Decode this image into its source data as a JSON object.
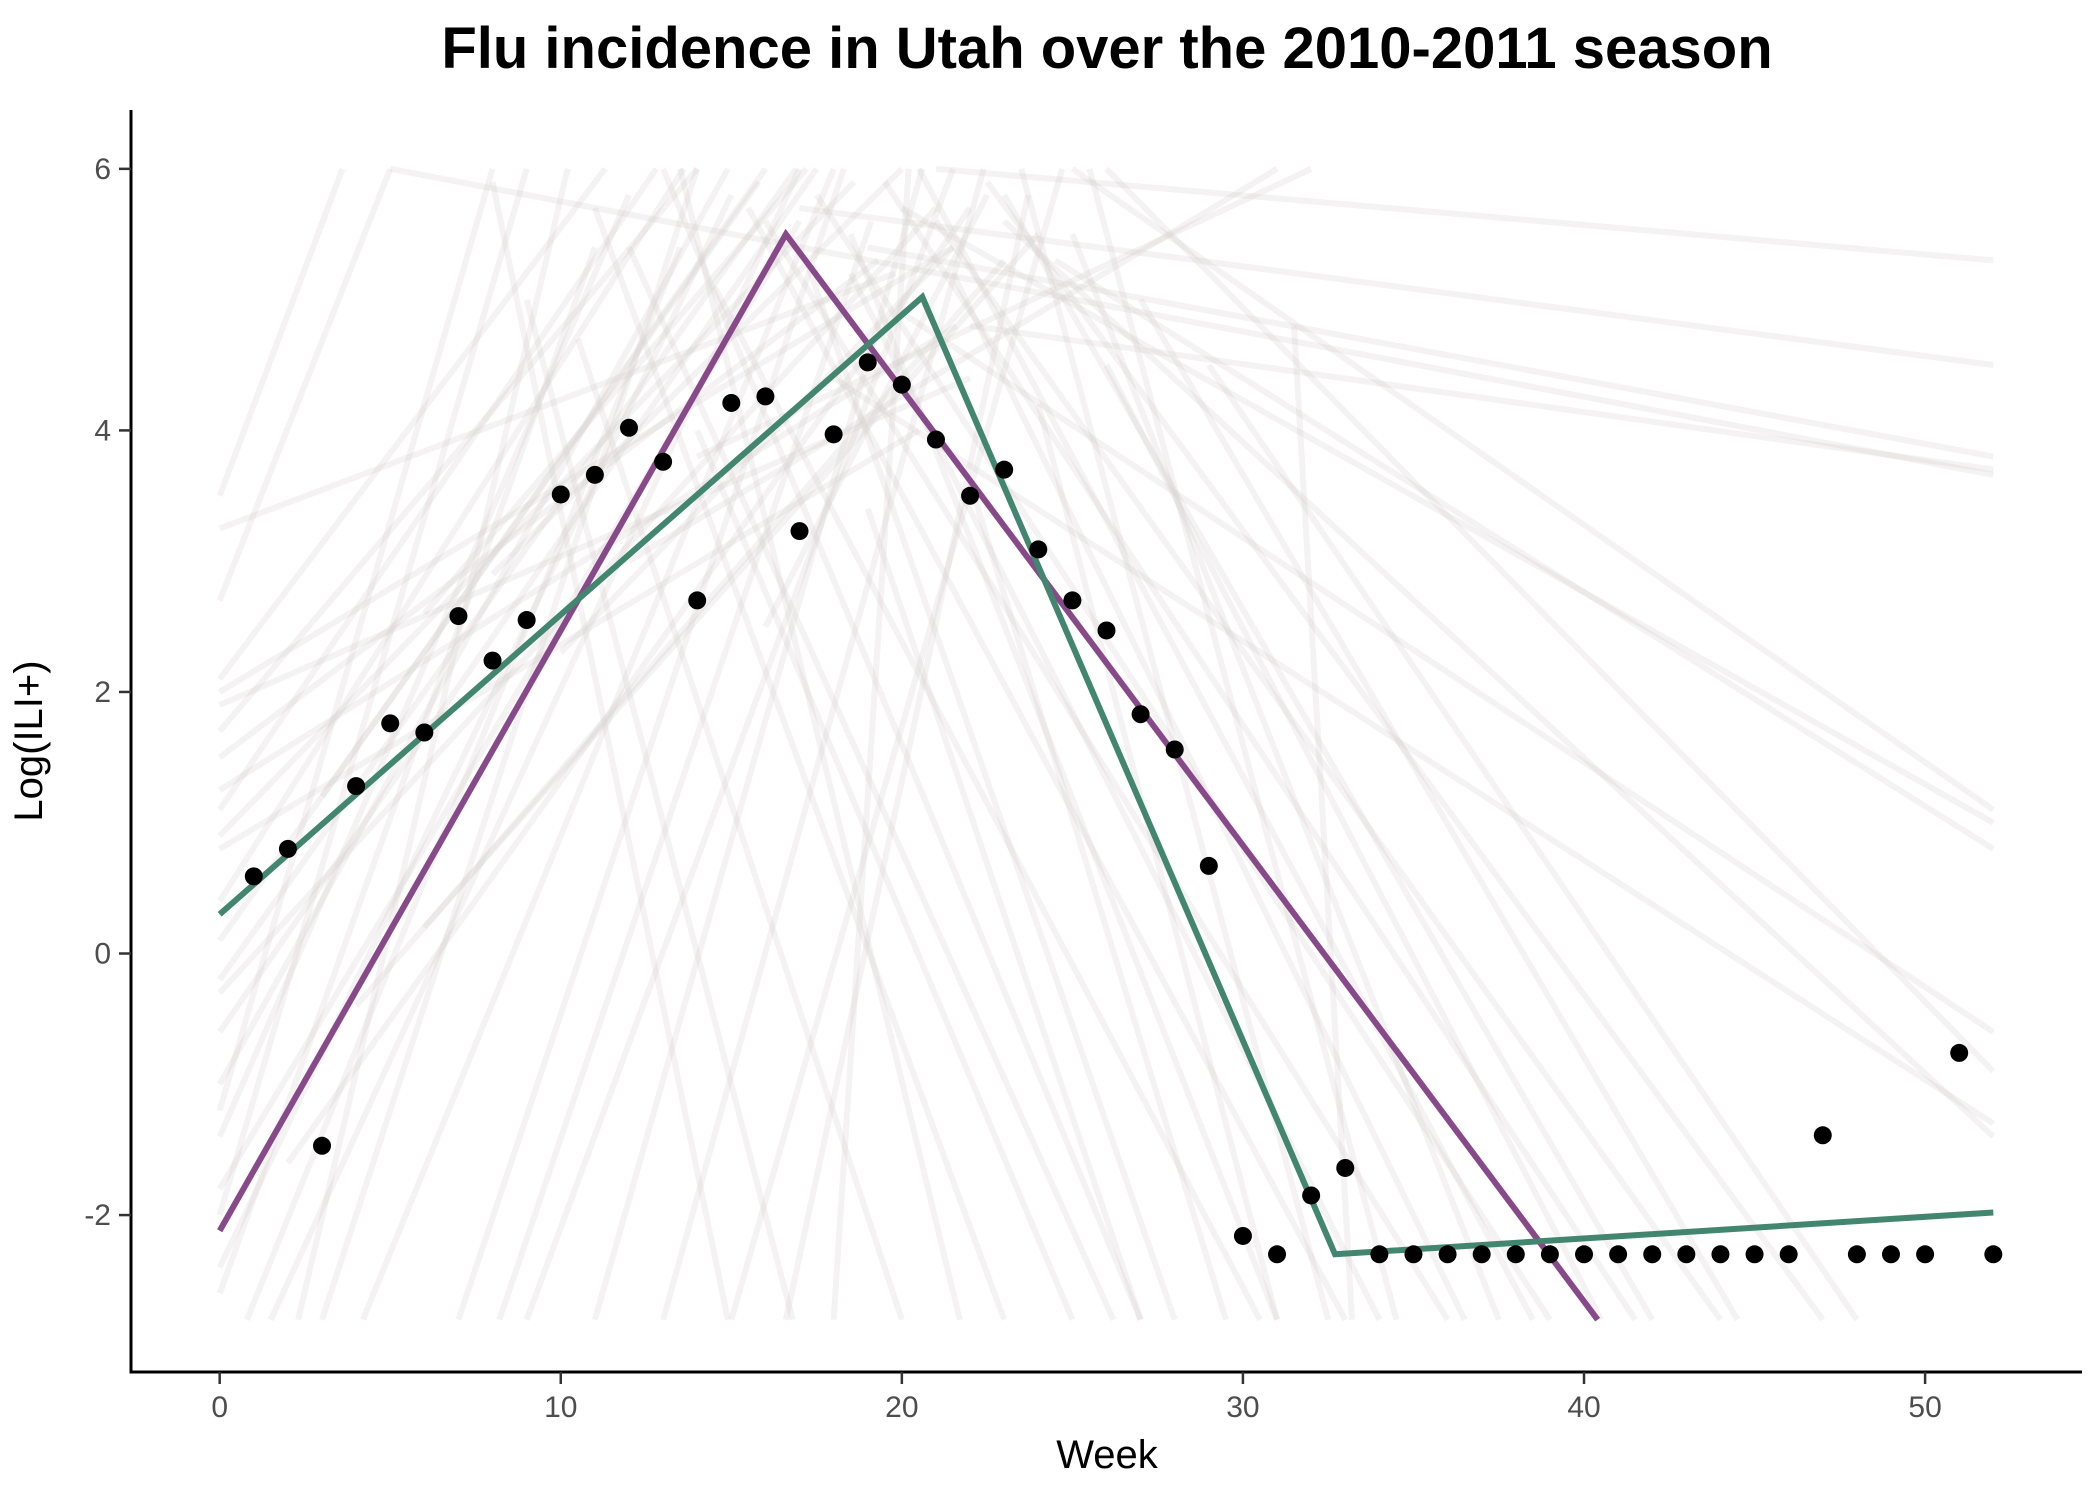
{
  "chart_data": {
    "type": "line",
    "title": "Flu incidence in Utah over the 2010-2011 season",
    "xlabel": "Week",
    "ylabel": "Log(ILI+)",
    "xlim": [
      -2.6,
      54.6
    ],
    "ylim": [
      -3.2,
      6.45
    ],
    "x_ticks": [
      0,
      10,
      20,
      30,
      40,
      50
    ],
    "y_ticks": [
      -2,
      0,
      2,
      4,
      6
    ],
    "grid": false,
    "legend": "none",
    "colors": {
      "observed": "#000000",
      "fit_purple": "#874989",
      "fit_green": "#428670",
      "background_lines": "#d9cfcf"
    },
    "observed": {
      "x": [
        1,
        2,
        3,
        4,
        5,
        6,
        7,
        8,
        9,
        10,
        11,
        12,
        13,
        14,
        15,
        16,
        17,
        18,
        19,
        20,
        21,
        22,
        23,
        24,
        25,
        26,
        27,
        28,
        29,
        30,
        31,
        32,
        33,
        34,
        35,
        36,
        37,
        38,
        39,
        40,
        41,
        42,
        43,
        44,
        45,
        46,
        47,
        48,
        49,
        50,
        51,
        52
      ],
      "y": [
        0.59,
        0.8,
        -1.47,
        1.28,
        1.76,
        1.69,
        2.58,
        2.24,
        2.55,
        3.51,
        3.66,
        4.02,
        3.76,
        2.7,
        4.21,
        4.26,
        3.23,
        3.97,
        4.52,
        4.35,
        3.93,
        3.5,
        3.7,
        3.09,
        2.7,
        2.47,
        1.83,
        1.56,
        0.67,
        -2.16,
        -2.3,
        -1.85,
        -1.64,
        -2.3,
        -2.3,
        -2.3,
        -2.3,
        -2.3,
        -2.3,
        -2.3,
        -2.3,
        -2.3,
        -2.3,
        -2.3,
        -2.3,
        -2.3,
        -1.39,
        -2.3,
        -2.3,
        -2.3,
        -0.76,
        -2.3
      ]
    },
    "series": [
      {
        "x": [
          0,
          16.6,
          40.4
        ],
        "y": [
          -2.12,
          5.5,
          -2.8
        ]
      },
      {
        "x": [
          0,
          20.6,
          32.7,
          52
        ],
        "y": [
          0.3,
          5.02,
          -2.3,
          -1.98
        ]
      }
    ],
    "background_lines": [
      [
        0,
        -0.2,
        16.9,
        6.0
      ],
      [
        0,
        0.4,
        13.6,
        6.0
      ],
      [
        0,
        1.1,
        12.8,
        6.0
      ],
      [
        0,
        2.1,
        11.3,
        6.0
      ],
      [
        0,
        3.5,
        3.6,
        6.0
      ],
      [
        0,
        2.7,
        5.0,
        6.0
      ],
      [
        0,
        -1.0,
        14.9,
        6.0
      ],
      [
        0,
        0.1,
        15.8,
        5.9
      ],
      [
        0,
        -0.6,
        17.5,
        6.0
      ],
      [
        0,
        1.7,
        14.0,
        6.0
      ],
      [
        0,
        -1.8,
        17.0,
        5.6
      ],
      [
        0,
        -2.4,
        15.0,
        5.8
      ],
      [
        0,
        0.9,
        18.6,
        5.9
      ],
      [
        0,
        3.25,
        19.8,
        5.2
      ],
      [
        0,
        1.5,
        19.3,
        5.3
      ],
      [
        0,
        -1.4,
        12.0,
        5.8
      ],
      [
        0,
        2.0,
        21.5,
        5.4
      ],
      [
        0,
        -0.3,
        21.0,
        5.7
      ],
      [
        0,
        1.25,
        21.6,
        4.8
      ],
      [
        1.5,
        -2.8,
        17.0,
        6.0
      ],
      [
        2.3,
        -2.8,
        10.2,
        6.0
      ],
      [
        3.0,
        -2.8,
        14.0,
        6.0
      ],
      [
        0.8,
        -2.8,
        13.5,
        5.4
      ],
      [
        4.2,
        -2.8,
        18.0,
        6.0
      ],
      [
        7.0,
        -2.8,
        18.3,
        6.0
      ],
      [
        8.2,
        -2.8,
        19.1,
        5.6
      ],
      [
        9.0,
        -2.8,
        21.5,
        6.0
      ],
      [
        11.0,
        -2.8,
        20.6,
        6.0
      ],
      [
        13.0,
        -2.8,
        22.4,
        6.0
      ],
      [
        15.0,
        -2.8,
        24.7,
        6.0
      ],
      [
        16.6,
        -2.8,
        23.7,
        5.8
      ],
      [
        18.0,
        -2.8,
        20.2,
        6.0
      ],
      [
        5.0,
        6.0,
        52.0,
        3.66
      ],
      [
        21.0,
        6.0,
        52.0,
        5.3
      ],
      [
        17.0,
        5.7,
        52.0,
        4.5
      ],
      [
        19.0,
        5.4,
        52.0,
        3.8
      ],
      [
        22.0,
        4.8,
        52.0,
        3.7
      ],
      [
        25.0,
        6.0,
        52.0,
        1.1
      ],
      [
        24.5,
        5.3,
        52.0,
        0.8
      ],
      [
        20.0,
        4.9,
        52.0,
        -0.6
      ],
      [
        23.0,
        5.6,
        52.0,
        -1.4
      ],
      [
        26.0,
        6.0,
        52.0,
        -0.9
      ],
      [
        22.5,
        5.9,
        47.0,
        -2.8
      ],
      [
        21.0,
        5.6,
        44.0,
        -2.8
      ],
      [
        19.5,
        5.9,
        41.5,
        -2.8
      ],
      [
        17.5,
        5.8,
        39.0,
        -2.8
      ],
      [
        16.0,
        5.6,
        36.0,
        -2.8
      ],
      [
        20.5,
        6.0,
        38.5,
        -2.8
      ],
      [
        18.5,
        5.2,
        34.0,
        -2.8
      ],
      [
        14.5,
        5.1,
        30.5,
        -2.8
      ],
      [
        15.5,
        5.7,
        33.0,
        -2.8
      ],
      [
        13.0,
        6.0,
        27.0,
        -2.8
      ],
      [
        12.0,
        5.4,
        26.2,
        -2.8
      ],
      [
        11.0,
        5.7,
        23.0,
        -2.8
      ],
      [
        10.5,
        4.7,
        20.0,
        -2.8
      ],
      [
        9.0,
        5.0,
        16.8,
        -2.8
      ],
      [
        8.0,
        5.9,
        14.9,
        -2.8
      ],
      [
        23.5,
        6.0,
        32.5,
        -2.8
      ],
      [
        25.0,
        5.5,
        37.5,
        -2.8
      ],
      [
        27.0,
        5.0,
        44.5,
        -2.8
      ],
      [
        29.0,
        4.5,
        48.0,
        -2.8
      ],
      [
        31.5,
        4.8,
        33.2,
        -2.8
      ],
      [
        24.0,
        4.2,
        31.0,
        -2.8
      ],
      [
        22.0,
        3.6,
        29.5,
        -2.8
      ],
      [
        8.0,
        2.9,
        20.0,
        6.0
      ],
      [
        10.0,
        2.3,
        21.5,
        5.4
      ],
      [
        6.0,
        2.6,
        17.2,
        6.0
      ],
      [
        12.0,
        3.0,
        31.0,
        6.0
      ],
      [
        14.0,
        3.8,
        32.0,
        6.0
      ],
      [
        3.0,
        1.2,
        16.0,
        6.0
      ],
      [
        16.0,
        2.5,
        22.5,
        5.8
      ],
      [
        0,
        -2.6,
        11.0,
        5.4
      ],
      [
        0,
        -2.0,
        9.0,
        6.0
      ],
      [
        0,
        -1.2,
        8.0,
        6.0
      ],
      [
        18.5,
        5.5,
        31.0,
        -2.8
      ],
      [
        17.2,
        5.3,
        28.0,
        -2.8
      ],
      [
        21.5,
        5.2,
        36.5,
        -2.8
      ],
      [
        23.0,
        5.8,
        42.0,
        -2.8
      ],
      [
        26.0,
        4.5,
        40.5,
        -2.8
      ],
      [
        0,
        0.8,
        20.5,
        4.0
      ],
      [
        0,
        1.9,
        22.0,
        4.4
      ],
      [
        6.0,
        0.2,
        24.0,
        5.5
      ],
      [
        4.0,
        -0.4,
        23.0,
        5.3
      ],
      [
        2.0,
        -1.6,
        22.0,
        5.7
      ],
      [
        19.0,
        3.4,
        27.0,
        -2.8
      ],
      [
        14.0,
        4.0,
        25.0,
        -2.8
      ],
      [
        25.5,
        6.0,
        34.5,
        -2.8
      ],
      [
        13.5,
        6.0,
        21.7,
        -2.8
      ],
      [
        20.0,
        5.7,
        52.0,
        1.0
      ],
      [
        18.0,
        4.4,
        52.0,
        -1.3
      ]
    ]
  }
}
